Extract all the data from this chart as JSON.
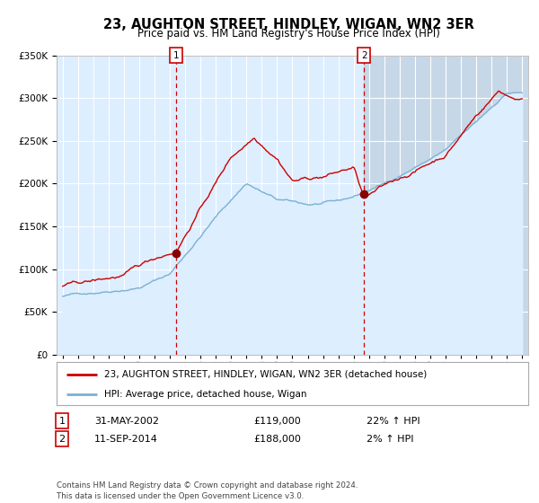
{
  "title": "23, AUGHTON STREET, HINDLEY, WIGAN, WN2 3ER",
  "subtitle": "Price paid vs. HM Land Registry's House Price Index (HPI)",
  "legend_line1": "23, AUGHTON STREET, HINDLEY, WIGAN, WN2 3ER (detached house)",
  "legend_line2": "HPI: Average price, detached house, Wigan",
  "transaction1_date": "31-MAY-2002",
  "transaction1_price": 119000,
  "transaction1_hpi": "22% ↑ HPI",
  "transaction1_year": 2002.42,
  "transaction2_date": "11-SEP-2014",
  "transaction2_price": 188000,
  "transaction2_hpi": "2% ↑ HPI",
  "transaction2_year": 2014.69,
  "ylim": [
    0,
    350000
  ],
  "plot_bg_color": "#ddeeff",
  "grid_color": "#ffffff",
  "red_line_color": "#cc0000",
  "blue_line_color": "#7ab0d4",
  "dot_color": "#880000",
  "vline_color": "#cc0000",
  "footer": "Contains HM Land Registry data © Crown copyright and database right 2024.\nThis data is licensed under the Open Government Licence v3.0."
}
